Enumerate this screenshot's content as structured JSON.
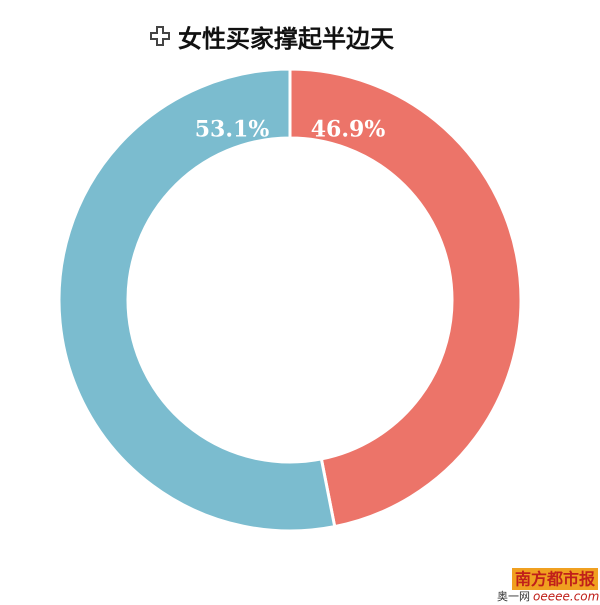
{
  "chart_data": {
    "type": "donut",
    "title": "女性买家撑起半边天",
    "values": [
      46.9,
      53.1
    ],
    "value_labels": [
      "46.9%",
      "53.1%"
    ],
    "colors": [
      "#ec7469",
      "#7bbccf"
    ],
    "watermark": {
      "logo": "南方都市报",
      "site": "奥一网",
      "domain": "oeeee.com"
    }
  }
}
